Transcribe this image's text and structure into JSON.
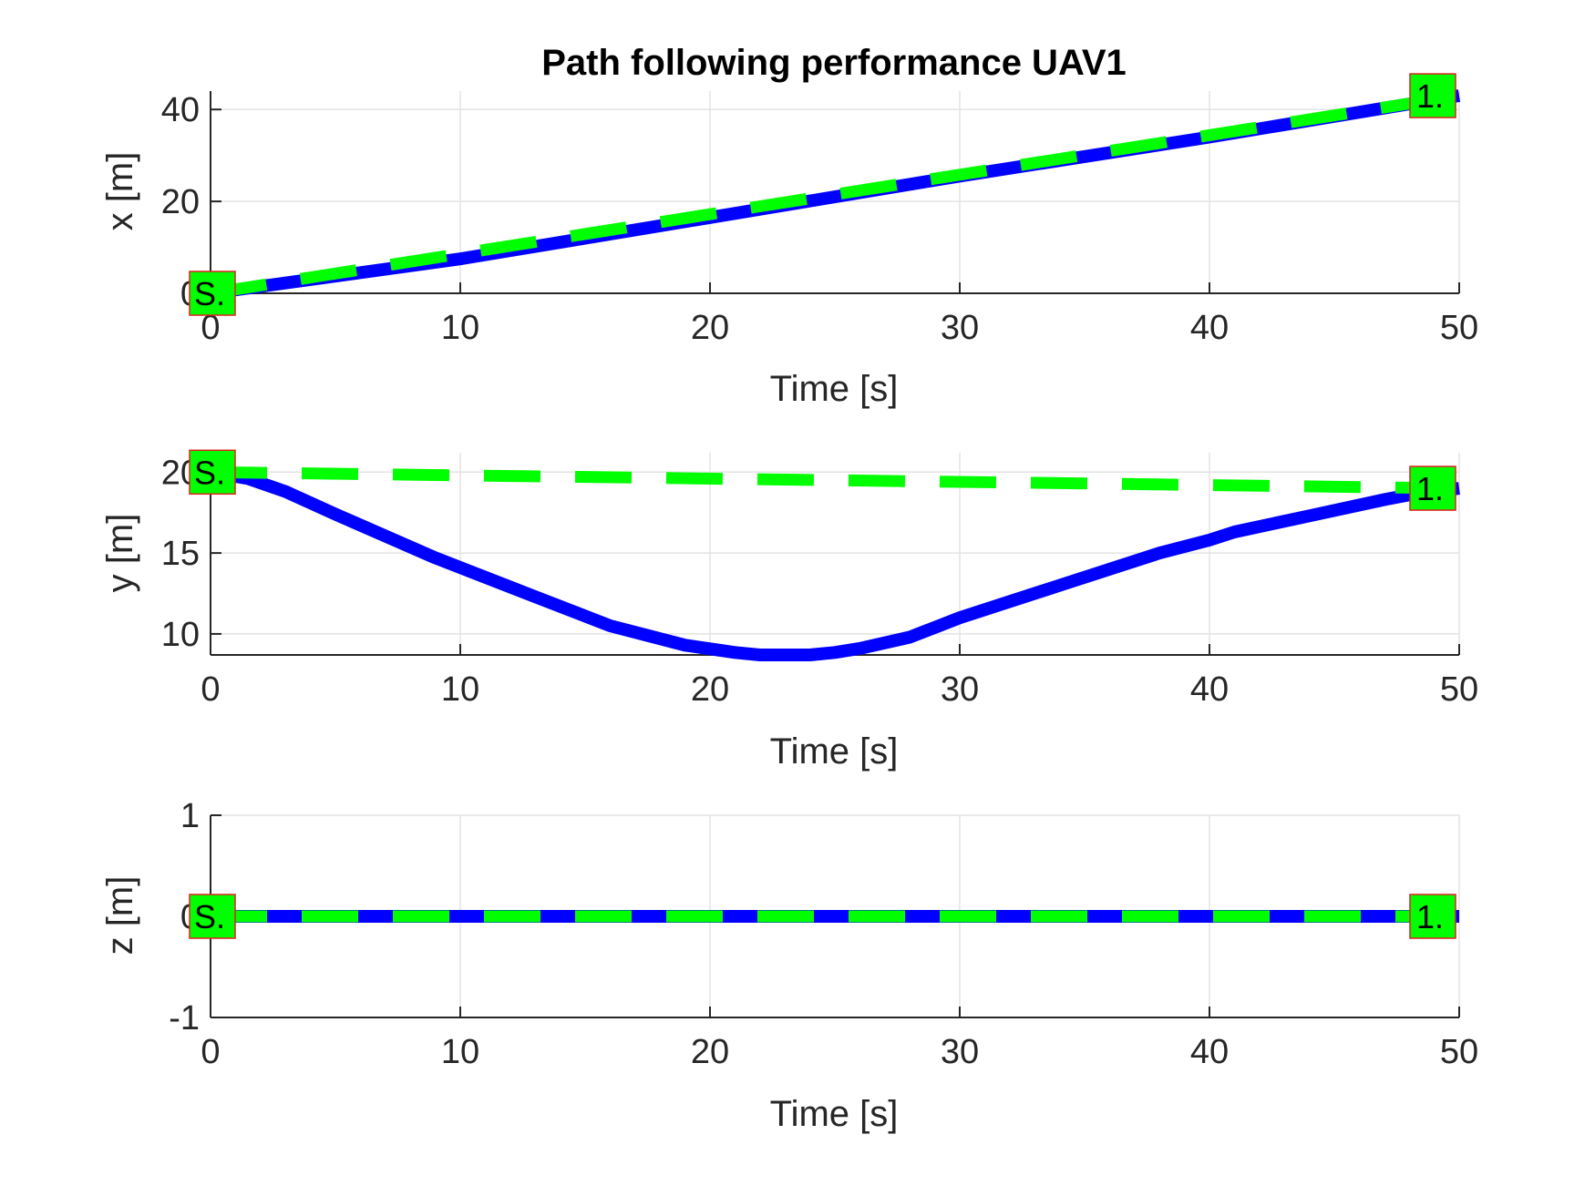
{
  "chart_data": [
    {
      "type": "line",
      "title": "Path following performance  UAV1",
      "xlabel": "Time [s]",
      "ylabel": "x [m]",
      "xlim": [
        0,
        50
      ],
      "ylim": [
        0,
        44
      ],
      "xticks": [
        0,
        10,
        20,
        30,
        40,
        50
      ],
      "yticks": [
        0,
        20,
        40
      ],
      "grid": true,
      "series": [
        {
          "style": "solid",
          "color": "#0000ff",
          "x": [
            0,
            10,
            20,
            30,
            40,
            50
          ],
          "values": [
            0,
            7.5,
            16.5,
            25.5,
            34,
            43
          ]
        },
        {
          "style": "dashed",
          "color": "#00ff00",
          "x": [
            0,
            50
          ],
          "values": [
            0,
            43
          ]
        }
      ],
      "markers": [
        {
          "label": "S.",
          "x": 0,
          "y": 0
        },
        {
          "label": "1.",
          "x": 50,
          "y": 43
        }
      ]
    },
    {
      "type": "line",
      "title": "",
      "xlabel": "Time [s]",
      "ylabel": "y [m]",
      "xlim": [
        0,
        50
      ],
      "ylim": [
        8.7,
        21.2
      ],
      "xticks": [
        0,
        10,
        20,
        30,
        40,
        50
      ],
      "yticks": [
        10,
        15,
        20
      ],
      "grid": true,
      "series": [
        {
          "style": "solid",
          "color": "#0000ff",
          "x": [
            0,
            1.5,
            3,
            5,
            9,
            13,
            16,
            19,
            21,
            22,
            24,
            25,
            26,
            28,
            30,
            34,
            38,
            40,
            41,
            44,
            47,
            48,
            50
          ],
          "values": [
            20,
            19.6,
            18.8,
            17.4,
            14.7,
            12.3,
            10.5,
            9.3,
            8.85,
            8.7,
            8.7,
            8.85,
            9.1,
            9.8,
            11,
            13,
            15,
            15.8,
            16.3,
            17.3,
            18.3,
            18.6,
            19
          ]
        },
        {
          "style": "dashed",
          "color": "#00ff00",
          "x": [
            0,
            50
          ],
          "values": [
            20,
            19
          ]
        }
      ],
      "markers": [
        {
          "label": "S.",
          "x": 0,
          "y": 20
        },
        {
          "label": "1.",
          "x": 50,
          "y": 19
        }
      ]
    },
    {
      "type": "line",
      "title": "",
      "xlabel": "Time [s]",
      "ylabel": "z [m]",
      "xlim": [
        0,
        50
      ],
      "ylim": [
        -1,
        1
      ],
      "xticks": [
        0,
        10,
        20,
        30,
        40,
        50
      ],
      "yticks": [
        -1,
        0,
        1
      ],
      "grid": true,
      "series": [
        {
          "style": "solid",
          "color": "#0000ff",
          "x": [
            0,
            50
          ],
          "values": [
            0,
            0
          ]
        },
        {
          "style": "dashed",
          "color": "#00ff00",
          "x": [
            0,
            50
          ],
          "values": [
            0,
            0
          ]
        }
      ],
      "markers": [
        {
          "label": "S.",
          "x": 0,
          "y": 0
        },
        {
          "label": "1.",
          "x": 50,
          "y": 0
        }
      ]
    }
  ]
}
